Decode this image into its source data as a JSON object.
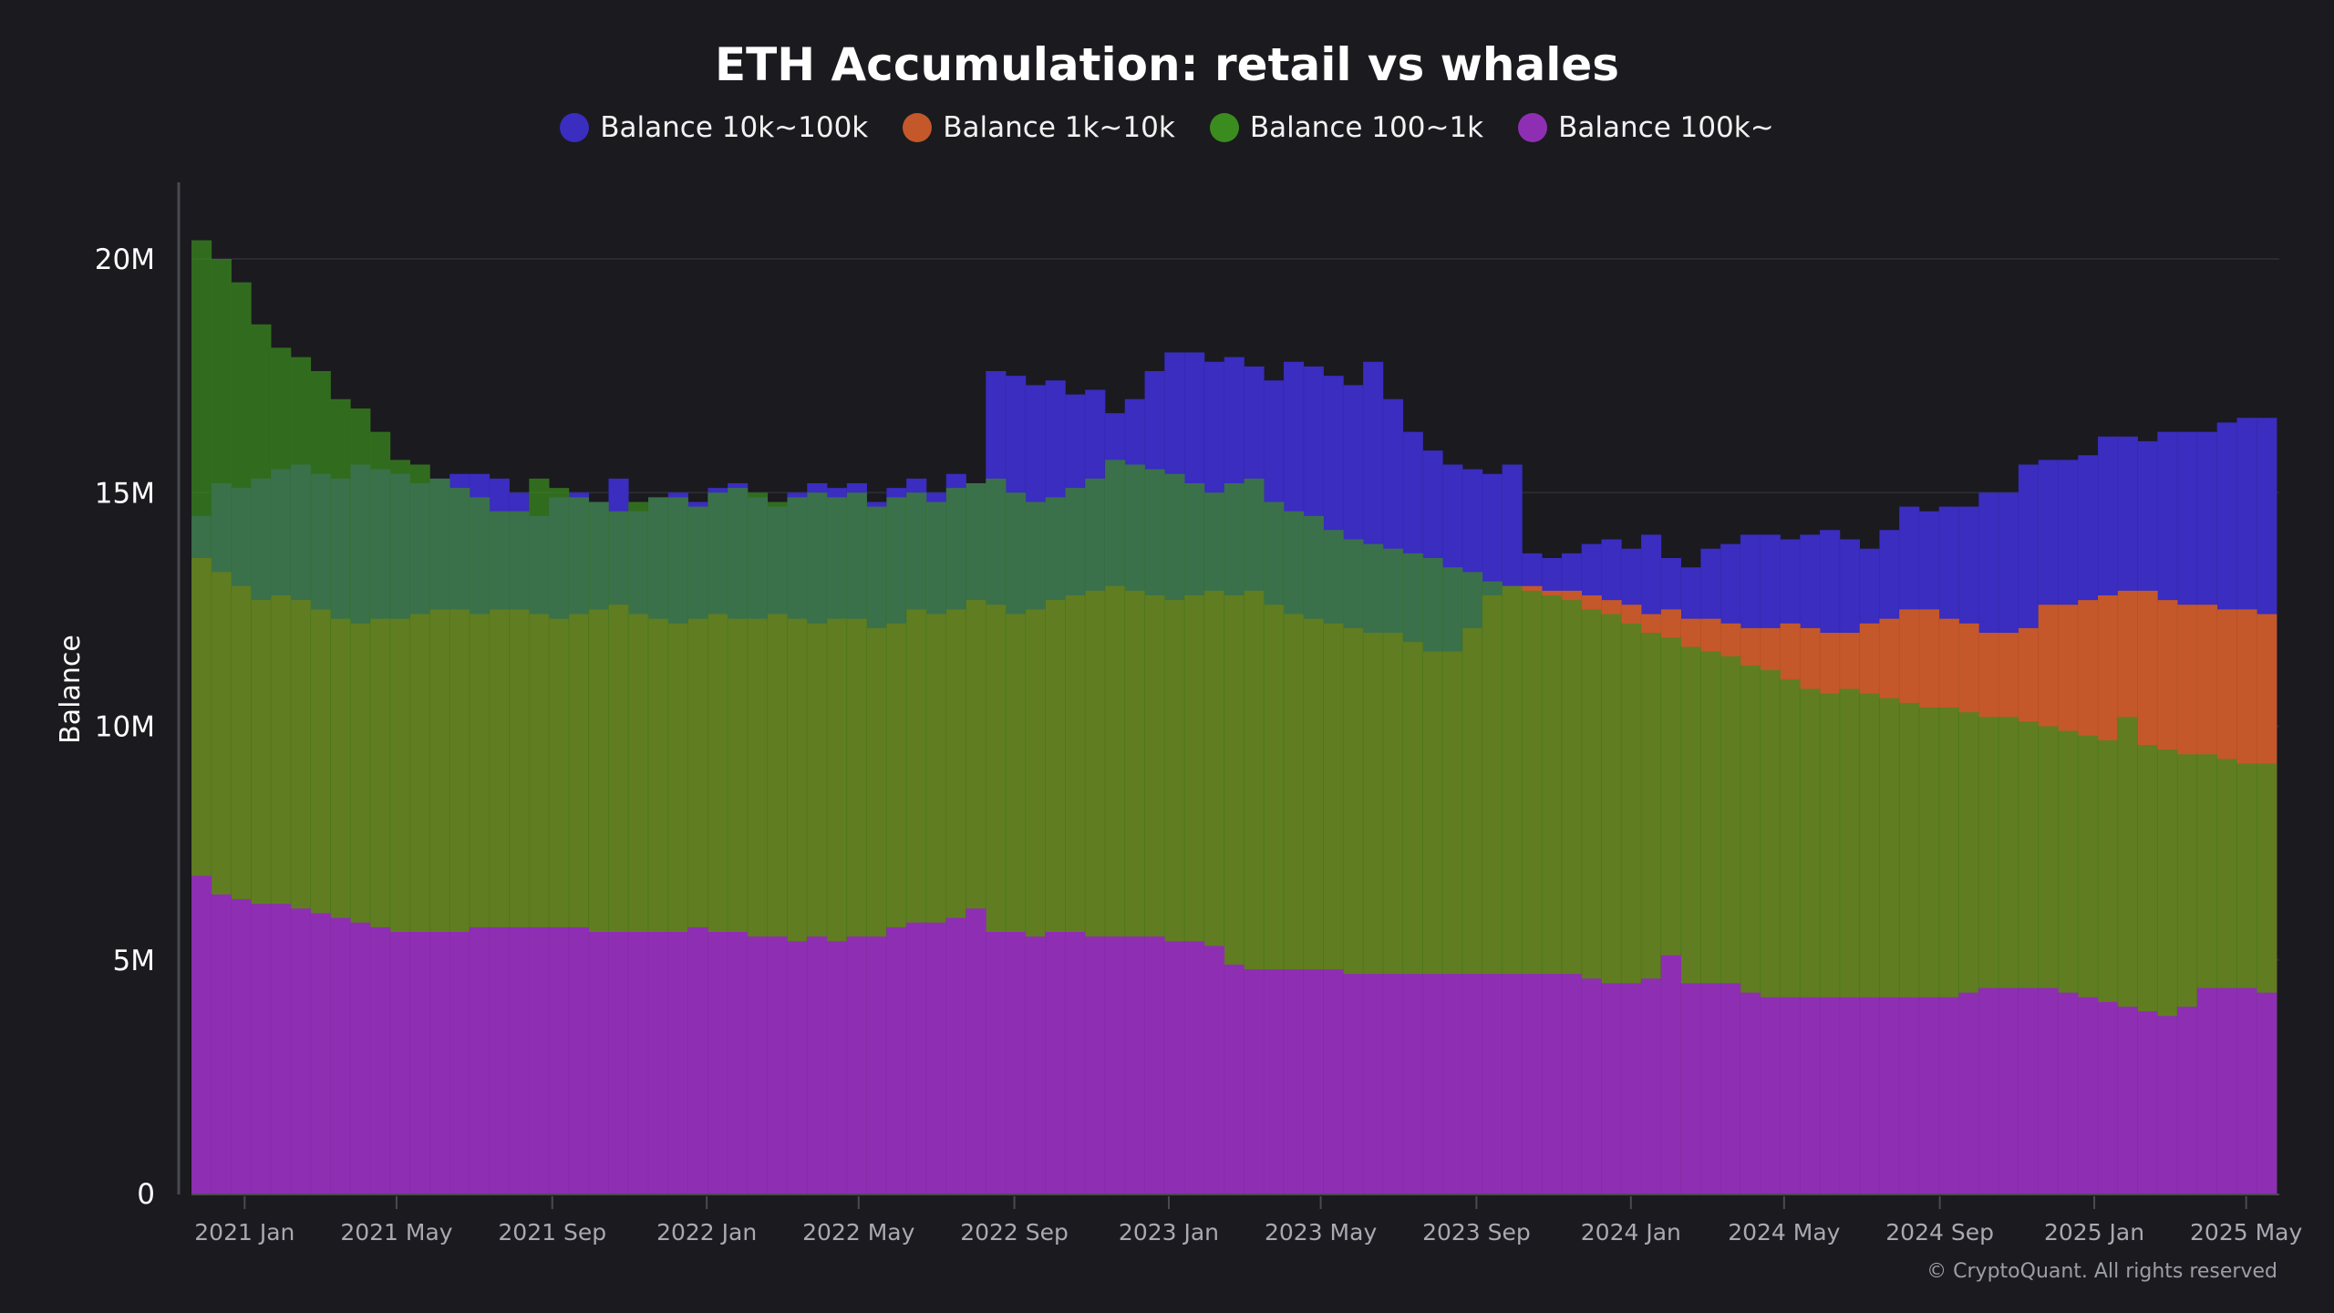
{
  "chart_data": {
    "type": "bar",
    "layout": "overlapping",
    "title": "ETH Accumulation: retail vs whales",
    "ylabel": "Balance",
    "xlabel": "",
    "ylim": [
      0,
      21.5
    ],
    "y_unit": "M",
    "yticks": [
      {
        "value": 0,
        "label": "0"
      },
      {
        "value": 5,
        "label": "5M"
      },
      {
        "value": 10,
        "label": "10M"
      },
      {
        "value": 15,
        "label": "15M"
      },
      {
        "value": 20,
        "label": "20M"
      }
    ],
    "xrange": [
      "2020-11-20",
      "2025-05-25"
    ],
    "xticks": [
      {
        "date": "2021-01-01",
        "label": "2021 Jan"
      },
      {
        "date": "2021-05-01",
        "label": "2021 May"
      },
      {
        "date": "2021-09-01",
        "label": "2021 Sep"
      },
      {
        "date": "2022-01-01",
        "label": "2022 Jan"
      },
      {
        "date": "2022-05-01",
        "label": "2022 May"
      },
      {
        "date": "2022-09-01",
        "label": "2022 Sep"
      },
      {
        "date": "2023-01-01",
        "label": "2023 Jan"
      },
      {
        "date": "2023-05-01",
        "label": "2023 May"
      },
      {
        "date": "2023-09-01",
        "label": "2023 Sep"
      },
      {
        "date": "2024-01-01",
        "label": "2024 Jan"
      },
      {
        "date": "2024-05-01",
        "label": "2024 May"
      },
      {
        "date": "2024-09-01",
        "label": "2024 Sep"
      },
      {
        "date": "2025-01-01",
        "label": "2025 Jan"
      },
      {
        "date": "2025-05-01",
        "label": "2025 May"
      }
    ],
    "grid": true,
    "legend_position": "top-center",
    "bar_interval_days": 14,
    "start_date": "2020-11-20",
    "series": [
      {
        "name": "Balance 10k~100k",
        "color": "#3a2dbf",
        "values": [
          14.5,
          15.2,
          15.1,
          15.3,
          15.5,
          15.6,
          15.4,
          15.3,
          15.6,
          15.5,
          15.4,
          15.2,
          15.3,
          15.4,
          15.4,
          15.3,
          15.0,
          14.5,
          14.9,
          15.0,
          14.8,
          15.3,
          14.6,
          14.9,
          15.0,
          14.8,
          15.1,
          15.2,
          14.9,
          14.7,
          15.0,
          15.2,
          15.1,
          15.2,
          14.8,
          15.1,
          15.3,
          15.0,
          15.4,
          15.2,
          17.6,
          17.5,
          17.3,
          17.4,
          17.1,
          17.2,
          16.7,
          17.0,
          17.6,
          18.0,
          18.0,
          17.8,
          17.9,
          17.7,
          17.4,
          17.8,
          17.7,
          17.5,
          17.3,
          17.8,
          17.0,
          16.3,
          15.9,
          15.6,
          15.5,
          15.4,
          15.6,
          13.7,
          13.6,
          13.7,
          13.9,
          14.0,
          13.8,
          14.1,
          13.6,
          13.4,
          13.8,
          13.9,
          14.1,
          14.1,
          14.0,
          14.1,
          14.2,
          14.0,
          13.8,
          14.2,
          14.7,
          14.6,
          14.7,
          14.7,
          15.0,
          15.0,
          15.6,
          15.7,
          15.7,
          15.8,
          16.2,
          16.2,
          16.1,
          16.3,
          16.3,
          16.3,
          16.5,
          16.6,
          16.6
        ]
      },
      {
        "name": "Balance 1k~10k",
        "color": "#c4582a",
        "values": [
          13.6,
          13.3,
          13.0,
          12.7,
          12.8,
          12.7,
          12.5,
          12.3,
          12.2,
          12.3,
          12.3,
          12.4,
          12.5,
          12.5,
          12.4,
          12.5,
          12.5,
          12.4,
          12.3,
          12.4,
          12.5,
          12.6,
          12.4,
          12.3,
          12.2,
          12.3,
          12.4,
          12.3,
          12.3,
          12.4,
          12.3,
          12.2,
          12.3,
          12.3,
          12.1,
          12.2,
          12.5,
          12.4,
          12.5,
          12.7,
          12.6,
          12.4,
          12.5,
          12.7,
          12.8,
          12.9,
          13.0,
          12.9,
          12.8,
          12.7,
          12.8,
          12.9,
          12.8,
          12.9,
          12.6,
          12.4,
          12.3,
          12.2,
          12.1,
          12.0,
          12.0,
          11.8,
          11.6,
          11.6,
          12.1,
          12.8,
          13.0,
          13.0,
          12.9,
          12.9,
          12.8,
          12.7,
          12.6,
          12.4,
          12.5,
          12.3,
          12.3,
          12.2,
          12.1,
          12.1,
          12.2,
          12.1,
          12.0,
          12.0,
          12.2,
          12.3,
          12.5,
          12.5,
          12.3,
          12.2,
          12.0,
          12.0,
          12.1,
          12.6,
          12.6,
          12.7,
          12.8,
          12.9,
          12.9,
          12.7,
          12.6,
          12.6,
          12.5,
          12.5,
          12.4
        ]
      },
      {
        "name": "Balance 100~1k",
        "color": "#3a8c1e",
        "values": [
          20.4,
          20.0,
          19.5,
          18.6,
          18.1,
          17.9,
          17.6,
          17.0,
          16.8,
          16.3,
          15.7,
          15.6,
          15.3,
          15.1,
          14.9,
          14.6,
          14.6,
          15.3,
          15.1,
          14.9,
          14.8,
          14.6,
          14.8,
          14.9,
          14.9,
          14.7,
          15.0,
          15.1,
          15.0,
          14.8,
          14.9,
          15.0,
          14.9,
          15.0,
          14.7,
          14.9,
          15.0,
          14.8,
          15.1,
          15.2,
          15.3,
          15.0,
          14.8,
          14.9,
          15.1,
          15.3,
          15.7,
          15.6,
          15.5,
          15.4,
          15.2,
          15.0,
          15.2,
          15.3,
          14.8,
          14.6,
          14.5,
          14.2,
          14.0,
          13.9,
          13.8,
          13.7,
          13.6,
          13.4,
          13.3,
          13.1,
          13.0,
          12.9,
          12.8,
          12.7,
          12.5,
          12.4,
          12.2,
          12.0,
          11.9,
          11.7,
          11.6,
          11.5,
          11.3,
          11.2,
          11.0,
          10.8,
          10.7,
          10.8,
          10.7,
          10.6,
          10.5,
          10.4,
          10.4,
          10.3,
          10.2,
          10.2,
          10.1,
          10.0,
          9.9,
          9.8,
          9.7,
          10.2,
          9.6,
          9.5,
          9.4,
          9.4,
          9.3,
          9.2,
          9.2
        ]
      },
      {
        "name": "Balance 100k~",
        "color": "#8e2fb3",
        "values": [
          6.8,
          6.4,
          6.3,
          6.2,
          6.2,
          6.1,
          6.0,
          5.9,
          5.8,
          5.7,
          5.6,
          5.6,
          5.6,
          5.6,
          5.7,
          5.7,
          5.7,
          5.7,
          5.7,
          5.7,
          5.6,
          5.6,
          5.6,
          5.6,
          5.6,
          5.7,
          5.6,
          5.6,
          5.5,
          5.5,
          5.4,
          5.5,
          5.4,
          5.5,
          5.5,
          5.7,
          5.8,
          5.8,
          5.9,
          6.1,
          5.6,
          5.6,
          5.5,
          5.6,
          5.6,
          5.5,
          5.5,
          5.5,
          5.5,
          5.4,
          5.4,
          5.3,
          4.9,
          4.8,
          4.8,
          4.8,
          4.8,
          4.8,
          4.7,
          4.7,
          4.7,
          4.7,
          4.7,
          4.7,
          4.7,
          4.7,
          4.7,
          4.7,
          4.7,
          4.7,
          4.6,
          4.5,
          4.5,
          4.6,
          5.1,
          4.5,
          4.5,
          4.5,
          4.3,
          4.2,
          4.2,
          4.2,
          4.2,
          4.2,
          4.2,
          4.2,
          4.2,
          4.2,
          4.2,
          4.3,
          4.4,
          4.4,
          4.4,
          4.4,
          4.3,
          4.2,
          4.1,
          4.0,
          3.9,
          3.8,
          4.0,
          4.4,
          4.4,
          4.4,
          4.3
        ]
      }
    ]
  },
  "legend": [
    {
      "label": "Balance 10k~100k",
      "color": "#3a2dbf"
    },
    {
      "label": "Balance 1k~10k",
      "color": "#c4582a"
    },
    {
      "label": "Balance 100~1k",
      "color": "#3a8c1e"
    },
    {
      "label": "Balance 100k~",
      "color": "#8e2fb3"
    }
  ],
  "copyright": "© CryptoQuant. All rights reserved"
}
